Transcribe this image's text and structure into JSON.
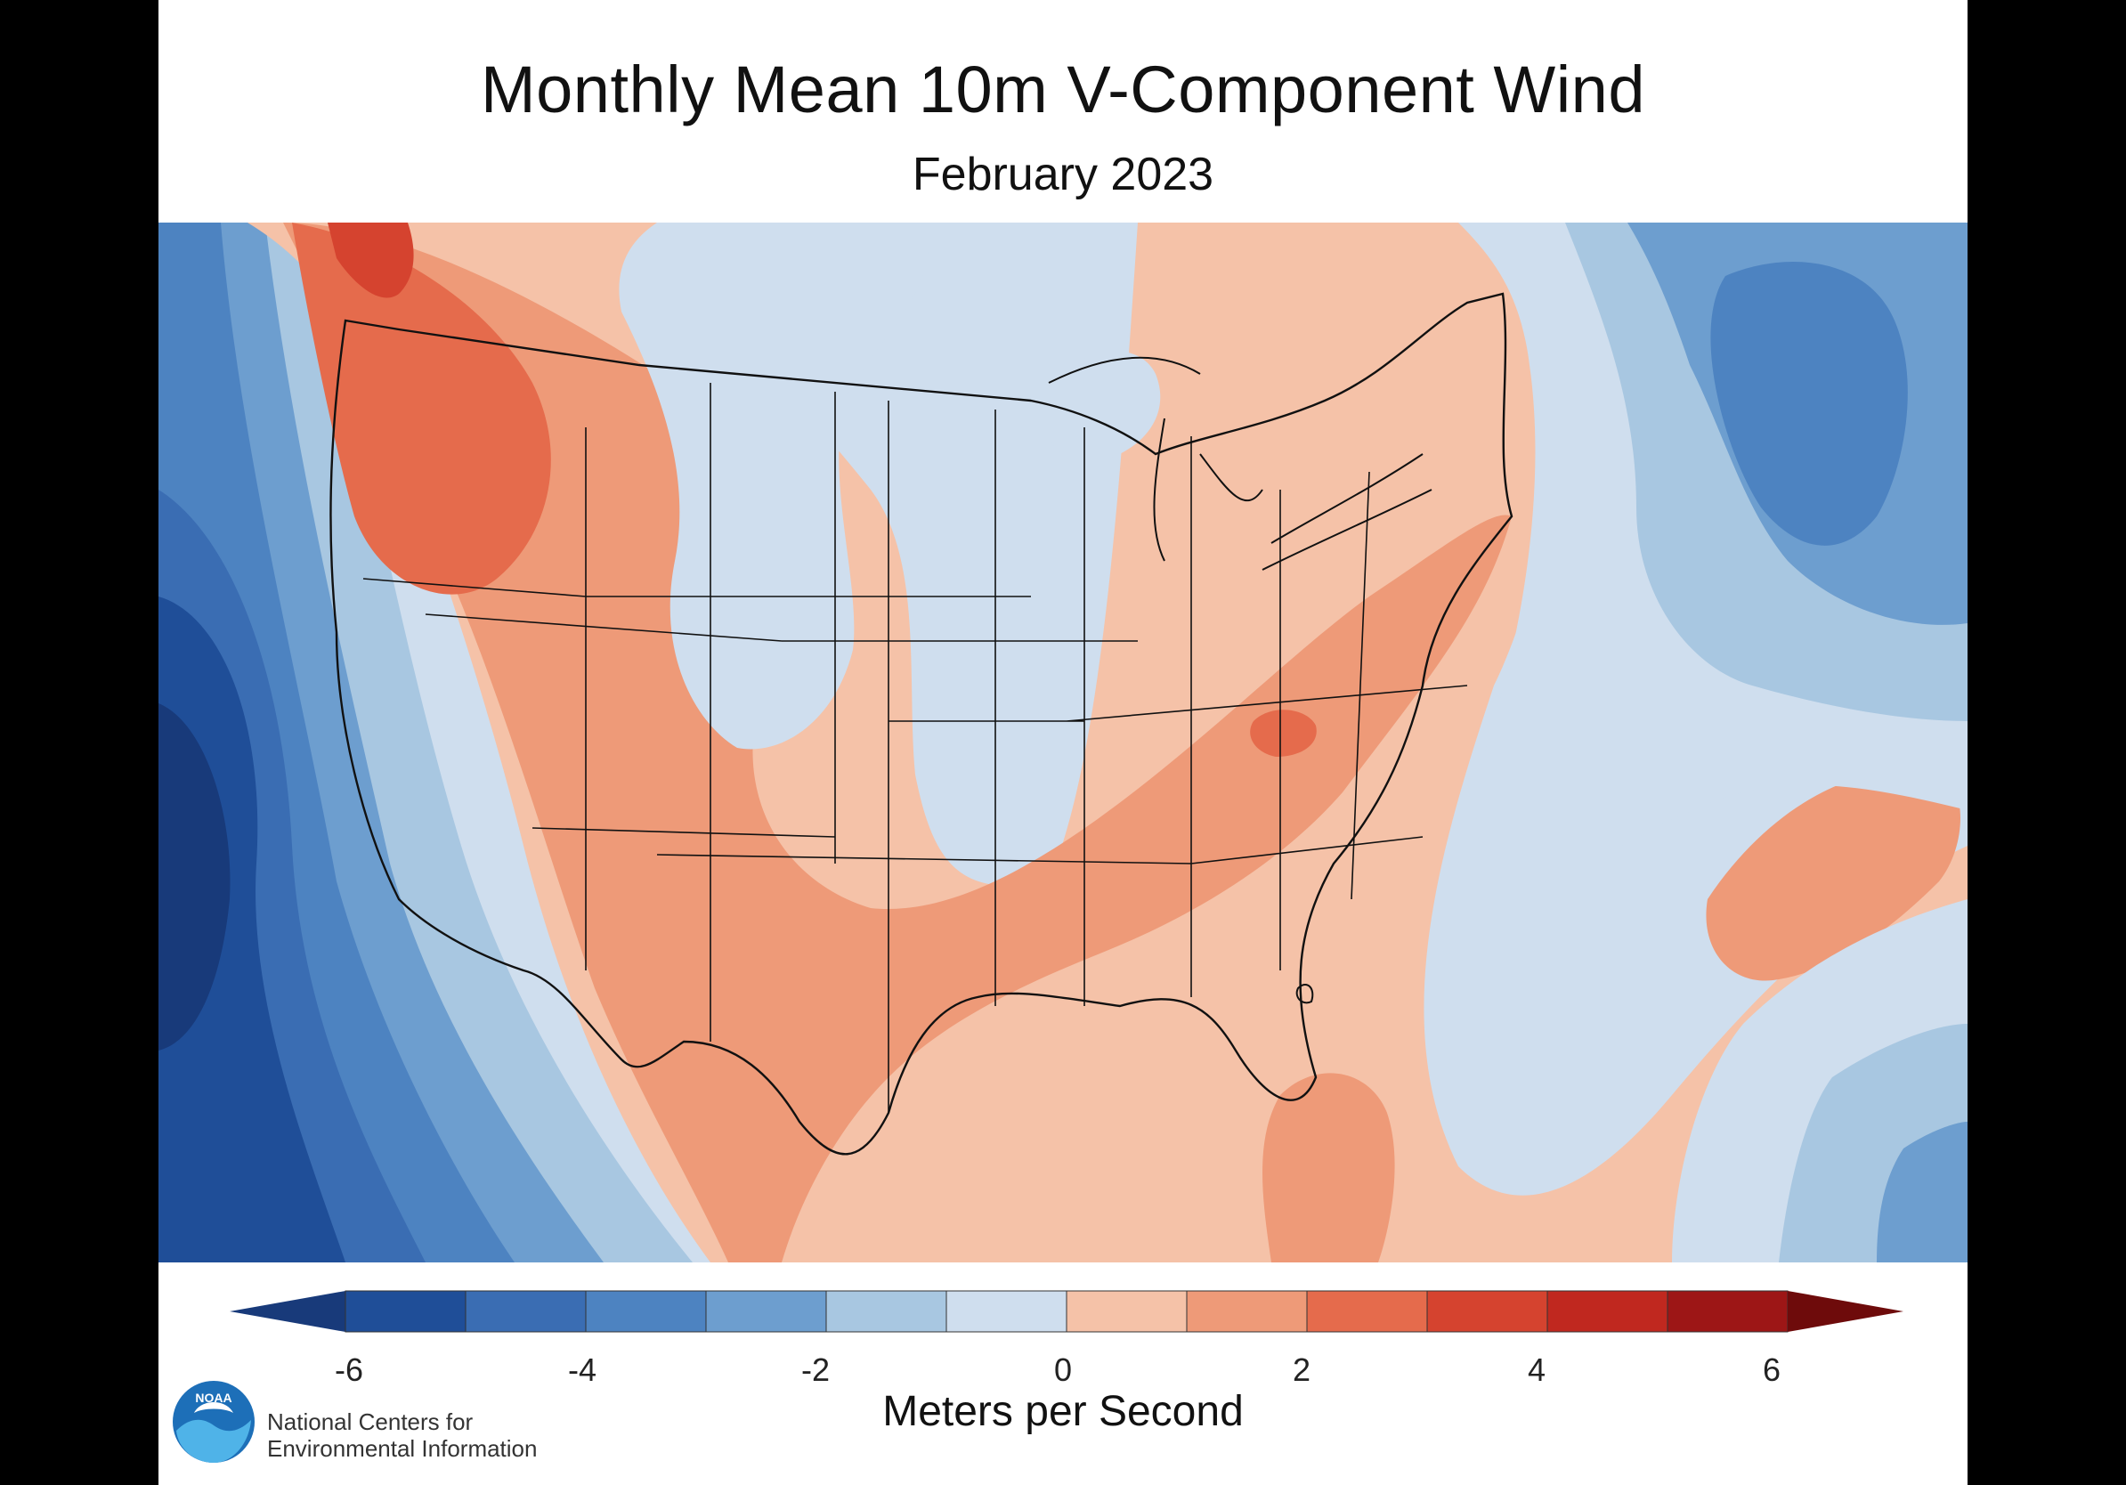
{
  "header": {
    "title": "Monthly Mean 10m V-Component Wind",
    "subtitle": "February 2023"
  },
  "legend": {
    "unit_label": "Meters per Second",
    "ticks": [
      "-6",
      "-4",
      "-2",
      "0",
      "2",
      "4",
      "6"
    ],
    "bins": [
      {
        "range": [
          -6,
          -5
        ],
        "color": "#1f4e98"
      },
      {
        "range": [
          -5,
          -4
        ],
        "color": "#3a6db3"
      },
      {
        "range": [
          -4,
          -3
        ],
        "color": "#4d83c1"
      },
      {
        "range": [
          -3,
          -2
        ],
        "color": "#6d9ecf"
      },
      {
        "range": [
          -2,
          -1
        ],
        "color": "#a8c7e1"
      },
      {
        "range": [
          -1,
          0
        ],
        "color": "#cfdeee"
      },
      {
        "range": [
          0,
          1
        ],
        "color": "#f5c2a8"
      },
      {
        "range": [
          1,
          2
        ],
        "color": "#ee9a78"
      },
      {
        "range": [
          2,
          3
        ],
        "color": "#e56b4c"
      },
      {
        "range": [
          3,
          4
        ],
        "color": "#d5432f"
      },
      {
        "range": [
          4,
          5
        ],
        "color": "#c0281f"
      },
      {
        "range": [
          5,
          6
        ],
        "color": "#9d1616"
      }
    ],
    "extend_low_color": "#183a7a",
    "extend_high_color": "#6e0b0b"
  },
  "colors": {
    "ocean_far": "#2a58a0",
    "ocean_deep": "#183a7a",
    "neutral_land": "#f5c2a8",
    "state_lines": "#111111"
  },
  "footer": {
    "org_line1": "National Centers for",
    "org_line2": "Environmental Information",
    "logo_text": "NOAA"
  }
}
